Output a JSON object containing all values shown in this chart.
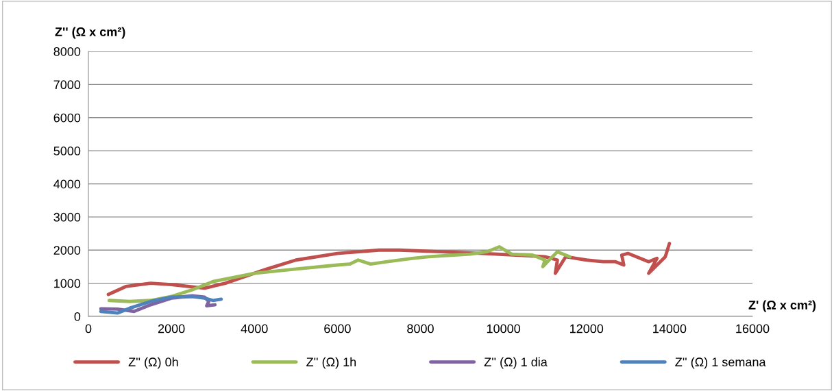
{
  "chart_data": {
    "type": "line",
    "xlabel": "Z' (Ω x cm²)",
    "ylabel": "Z'' (Ω x cm²)",
    "xlim": [
      0,
      16000
    ],
    "xticks": [
      0,
      2000,
      4000,
      6000,
      8000,
      10000,
      12000,
      14000,
      16000
    ],
    "ylim": [
      0,
      8000
    ],
    "yticks": [
      0,
      1000,
      2000,
      3000,
      4000,
      5000,
      6000,
      7000,
      8000
    ],
    "grid": "y",
    "legend": "bottom",
    "marker": "none",
    "line_style": "solid",
    "series": [
      {
        "name": "Z'' (Ω) 0h",
        "color": "#c0504d",
        "x": [
          480,
          900,
          1500,
          2000,
          2800,
          3300,
          4300,
          5000,
          6000,
          7000,
          7500,
          8500,
          9500,
          10300,
          11000,
          11300,
          11250,
          11500,
          12000,
          12400,
          12700,
          12900,
          12850,
          13000,
          13500,
          13700,
          13500,
          13900,
          14000
        ],
        "values": [
          660,
          900,
          1000,
          960,
          850,
          1000,
          1430,
          1700,
          1900,
          2000,
          2000,
          1950,
          1900,
          1850,
          1800,
          1700,
          1300,
          1800,
          1700,
          1650,
          1650,
          1550,
          1850,
          1900,
          1650,
          1750,
          1300,
          1800,
          2200
        ]
      },
      {
        "name": "Z'' (Ω) 1h",
        "color": "#9bbb59",
        "x": [
          500,
          1000,
          1500,
          2000,
          2500,
          3000,
          4000,
          5000,
          6000,
          6300,
          6500,
          6800,
          7200,
          7800,
          8200,
          8800,
          9200,
          9600,
          9900,
          10200,
          10700,
          11000,
          10950,
          11100,
          11300,
          11600
        ],
        "values": [
          480,
          450,
          480,
          600,
          800,
          1050,
          1300,
          1430,
          1550,
          1580,
          1700,
          1580,
          1650,
          1750,
          1800,
          1850,
          1880,
          1950,
          2100,
          1880,
          1850,
          1700,
          1500,
          1700,
          1950,
          1800
        ]
      },
      {
        "name": "Z'' (Ω) 1 dia",
        "color": "#8064a2",
        "x": [
          300,
          700,
          1100,
          1500,
          2000,
          2500,
          2800,
          2900,
          2850,
          3050
        ],
        "values": [
          230,
          220,
          150,
          350,
          550,
          620,
          580,
          450,
          320,
          350
        ]
      },
      {
        "name": "Z'' (Ω) 1 semana",
        "color": "#4f81bd",
        "x": [
          300,
          700,
          1000,
          1500,
          2000,
          2500,
          2800,
          3000,
          3200
        ],
        "values": [
          150,
          100,
          250,
          450,
          580,
          600,
          550,
          480,
          520
        ]
      }
    ]
  }
}
